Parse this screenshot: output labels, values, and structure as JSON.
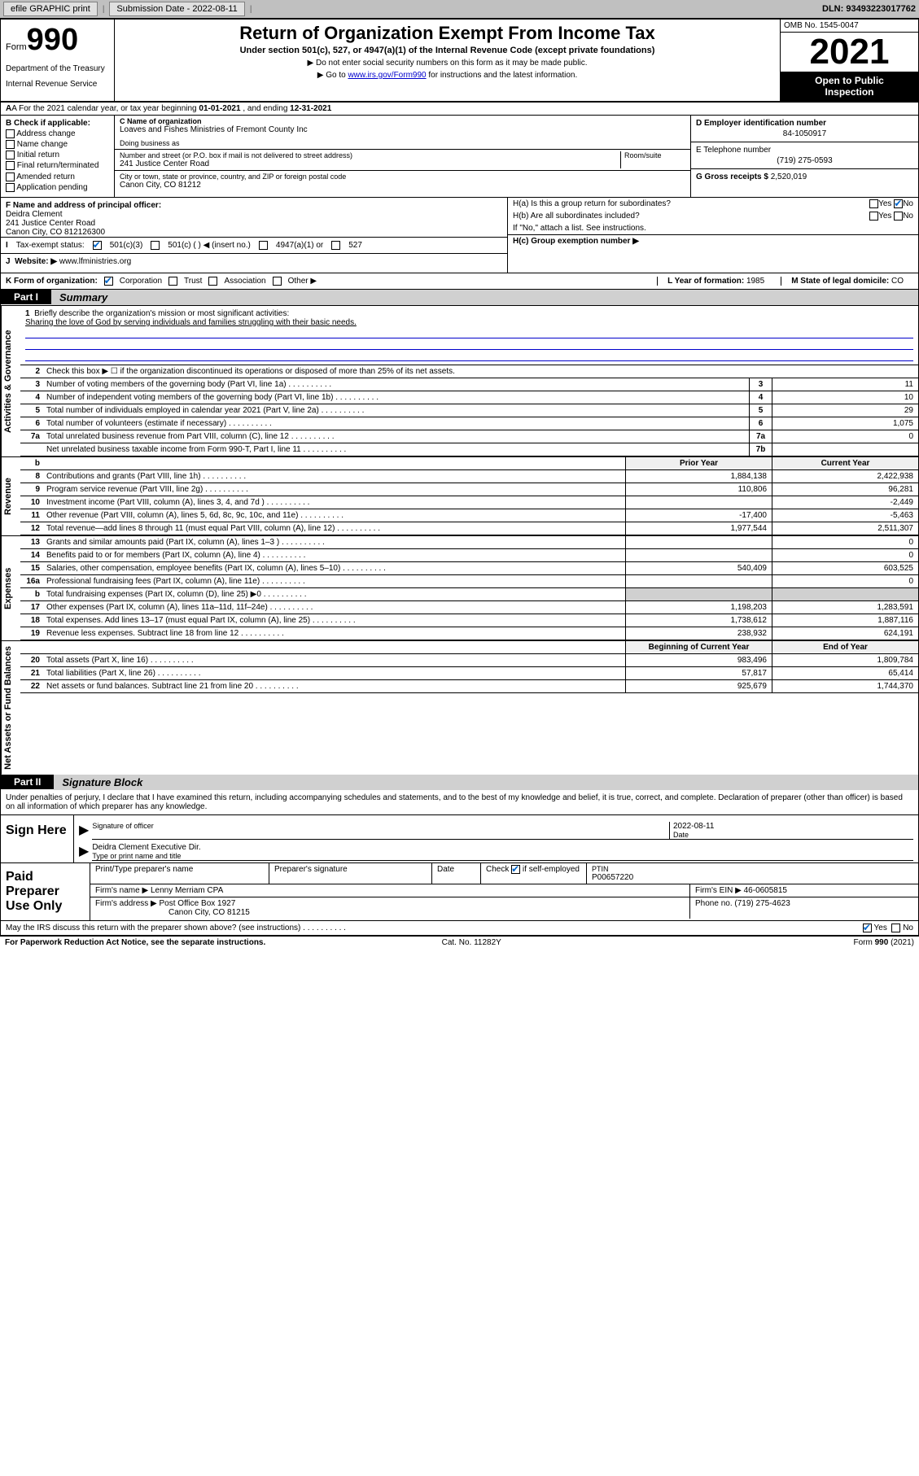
{
  "topbar": {
    "efile": "efile GRAPHIC print",
    "submission_label": "Submission Date - 2022-08-11",
    "dln": "DLN: 93493223017762"
  },
  "header": {
    "form_word": "Form",
    "form_num": "990",
    "dept": "Department of the Treasury",
    "irs": "Internal Revenue Service",
    "title": "Return of Organization Exempt From Income Tax",
    "sub": "Under section 501(c), 527, or 4947(a)(1) of the Internal Revenue Code (except private foundations)",
    "sub2a": "▶ Do not enter social security numbers on this form as it may be made public.",
    "sub2b_pre": "▶ Go to ",
    "sub2b_link": "www.irs.gov/Form990",
    "sub2b_post": " for instructions and the latest information.",
    "omb": "OMB No. 1545-0047",
    "year": "2021",
    "inspect1": "Open to Public",
    "inspect2": "Inspection"
  },
  "rowA": {
    "pre": "A For the 2021 calendar year, or tax year beginning ",
    "begin": "01-01-2021",
    "mid": " , and ending ",
    "end": "12-31-2021"
  },
  "B": {
    "label": "B Check if applicable:",
    "opts": [
      "Address change",
      "Name change",
      "Initial return",
      "Final return/terminated",
      "Amended return",
      "Application pending"
    ]
  },
  "C": {
    "name_label": "C Name of organization",
    "name": "Loaves and Fishes Ministries of Fremont County Inc",
    "dba_label": "Doing business as",
    "street_label": "Number and street (or P.O. box if mail is not delivered to street address)",
    "room_label": "Room/suite",
    "street": "241 Justice Center Road",
    "city_label": "City or town, state or province, country, and ZIP or foreign postal code",
    "city": "Canon City, CO  81212"
  },
  "D": {
    "label": "D Employer identification number",
    "val": "84-1050917"
  },
  "E": {
    "label": "E Telephone number",
    "val": "(719) 275-0593"
  },
  "G": {
    "label": "G Gross receipts $",
    "val": "2,520,019"
  },
  "F": {
    "label": "F Name and address of principal officer:",
    "name": "Deidra Clement",
    "addr1": "241 Justice Center Road",
    "addr2": "Canon City, CO  812126300"
  },
  "H": {
    "a": "H(a)  Is this a group return for subordinates?",
    "b": "H(b)  Are all subordinates included?",
    "b_note": "If \"No,\" attach a list. See instructions.",
    "c": "H(c)  Group exemption number ▶",
    "yes": "Yes",
    "no": "No"
  },
  "I": {
    "label": "Tax-exempt status:",
    "c3": "501(c)(3)",
    "c": "501(c) (  ) ◀ (insert no.)",
    "a1": "4947(a)(1) or",
    "527": "527"
  },
  "J": {
    "label": "Website: ▶",
    "val": "www.lfministries.org"
  },
  "K": {
    "label": "K Form of organization:",
    "corp": "Corporation",
    "trust": "Trust",
    "assoc": "Association",
    "other": "Other ▶"
  },
  "L": {
    "label": "L Year of formation:",
    "val": "1985"
  },
  "M": {
    "label": "M State of legal domicile:",
    "val": "CO"
  },
  "part1": {
    "tag": "Part I",
    "title": "Summary"
  },
  "mission": {
    "num": "1",
    "label": "Briefly describe the organization's mission or most significant activities:",
    "text": "Sharing the love of God by serving individuals and families struggling with their basic needs."
  },
  "line2": "Check this box ▶ ☐ if the organization discontinued its operations or disposed of more than 25% of its net assets.",
  "vtabs": {
    "gov": "Activities & Governance",
    "rev": "Revenue",
    "exp": "Expenses",
    "net": "Net Assets or Fund Balances"
  },
  "gov_lines": [
    {
      "n": "3",
      "t": "Number of voting members of the governing body (Part VI, line 1a)",
      "box": "3",
      "v": "11"
    },
    {
      "n": "4",
      "t": "Number of independent voting members of the governing body (Part VI, line 1b)",
      "box": "4",
      "v": "10"
    },
    {
      "n": "5",
      "t": "Total number of individuals employed in calendar year 2021 (Part V, line 2a)",
      "box": "5",
      "v": "29"
    },
    {
      "n": "6",
      "t": "Total number of volunteers (estimate if necessary)",
      "box": "6",
      "v": "1,075"
    },
    {
      "n": "7a",
      "t": "Total unrelated business revenue from Part VIII, column (C), line 12",
      "box": "7a",
      "v": "0"
    },
    {
      "n": "",
      "t": "Net unrelated business taxable income from Form 990-T, Part I, line 11",
      "box": "7b",
      "v": ""
    }
  ],
  "twocol_hdr": {
    "prior": "Prior Year",
    "current": "Current Year"
  },
  "rev_lines": [
    {
      "n": "8",
      "t": "Contributions and grants (Part VIII, line 1h)",
      "p": "1,884,138",
      "c": "2,422,938"
    },
    {
      "n": "9",
      "t": "Program service revenue (Part VIII, line 2g)",
      "p": "110,806",
      "c": "96,281"
    },
    {
      "n": "10",
      "t": "Investment income (Part VIII, column (A), lines 3, 4, and 7d )",
      "p": "",
      "c": "-2,449"
    },
    {
      "n": "11",
      "t": "Other revenue (Part VIII, column (A), lines 5, 6d, 8c, 9c, 10c, and 11e)",
      "p": "-17,400",
      "c": "-5,463"
    },
    {
      "n": "12",
      "t": "Total revenue—add lines 8 through 11 (must equal Part VIII, column (A), line 12)",
      "p": "1,977,544",
      "c": "2,511,307"
    }
  ],
  "exp_lines": [
    {
      "n": "13",
      "t": "Grants and similar amounts paid (Part IX, column (A), lines 1–3 )",
      "p": "",
      "c": "0"
    },
    {
      "n": "14",
      "t": "Benefits paid to or for members (Part IX, column (A), line 4)",
      "p": "",
      "c": "0"
    },
    {
      "n": "15",
      "t": "Salaries, other compensation, employee benefits (Part IX, column (A), lines 5–10)",
      "p": "540,409",
      "c": "603,525"
    },
    {
      "n": "16a",
      "t": "Professional fundraising fees (Part IX, column (A), line 11e)",
      "p": "",
      "c": "0"
    },
    {
      "n": "b",
      "t": "Total fundraising expenses (Part IX, column (D), line 25) ▶0",
      "p": "shade",
      "c": "shade"
    },
    {
      "n": "17",
      "t": "Other expenses (Part IX, column (A), lines 11a–11d, 11f–24e)",
      "p": "1,198,203",
      "c": "1,283,591"
    },
    {
      "n": "18",
      "t": "Total expenses. Add lines 13–17 (must equal Part IX, column (A), line 25)",
      "p": "1,738,612",
      "c": "1,887,116"
    },
    {
      "n": "19",
      "t": "Revenue less expenses. Subtract line 18 from line 12",
      "p": "238,932",
      "c": "624,191"
    }
  ],
  "net_hdr": {
    "begin": "Beginning of Current Year",
    "end": "End of Year"
  },
  "net_lines": [
    {
      "n": "20",
      "t": "Total assets (Part X, line 16)",
      "p": "983,496",
      "c": "1,809,784"
    },
    {
      "n": "21",
      "t": "Total liabilities (Part X, line 26)",
      "p": "57,817",
      "c": "65,414"
    },
    {
      "n": "22",
      "t": "Net assets or fund balances. Subtract line 21 from line 20",
      "p": "925,679",
      "c": "1,744,370"
    }
  ],
  "part2": {
    "tag": "Part II",
    "title": "Signature Block"
  },
  "declare": "Under penalties of perjury, I declare that I have examined this return, including accompanying schedules and statements, and to the best of my knowledge and belief, it is true, correct, and complete. Declaration of preparer (other than officer) is based on all information of which preparer has any knowledge.",
  "sign": {
    "here": "Sign Here",
    "sig_label": "Signature of officer",
    "date_label": "Date",
    "date": "2022-08-11",
    "name": "Deidra Clement Executive Dir.",
    "name_label": "Type or print name and title"
  },
  "paid": {
    "label": "Paid Preparer Use Only",
    "h1": "Print/Type preparer's name",
    "h2": "Preparer's signature",
    "h3": "Date",
    "h4pre": "Check",
    "h4post": "if self-employed",
    "ptin_label": "PTIN",
    "ptin": "P00657220",
    "firm_name_label": "Firm's name    ▶",
    "firm_name": "Lenny Merriam CPA",
    "firm_ein_label": "Firm's EIN ▶",
    "firm_ein": "46-0605815",
    "firm_addr_label": "Firm's address ▶",
    "firm_addr1": "Post Office Box 1927",
    "firm_addr2": "Canon City, CO  81215",
    "phone_label": "Phone no.",
    "phone": "(719) 275-4623"
  },
  "may_discuss": "May the IRS discuss this return with the preparer shown above? (see instructions)",
  "footer": {
    "left": "For Paperwork Reduction Act Notice, see the separate instructions.",
    "mid": "Cat. No. 11282Y",
    "right": "Form 990 (2021)"
  },
  "colors": {
    "link": "#0000cc",
    "check": "#0066cc"
  }
}
